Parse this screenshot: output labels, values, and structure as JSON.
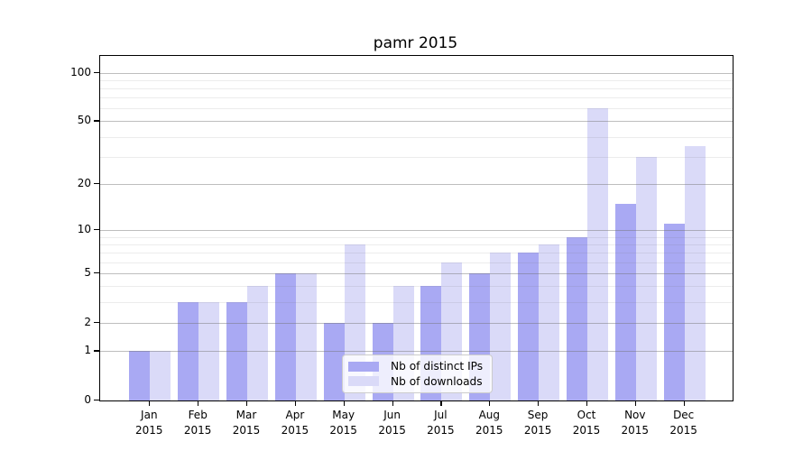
{
  "title": "pamr 2015",
  "chart_data": {
    "type": "bar",
    "categories": [
      "Jan 2015",
      "Feb 2015",
      "Mar 2015",
      "Apr 2015",
      "May 2015",
      "Jun 2015",
      "Jul 2015",
      "Aug 2015",
      "Sep 2015",
      "Oct 2015",
      "Nov 2015",
      "Dec 2015"
    ],
    "series": [
      {
        "name": "Nb of distinct IPs",
        "color": "#a9a9f3",
        "values": [
          1,
          3,
          3,
          5,
          2,
          2,
          4,
          5,
          7,
          9,
          15,
          11
        ]
      },
      {
        "name": "Nb of downloads",
        "color": "#dadaf8",
        "values": [
          1,
          3,
          4,
          5,
          8,
          4,
          6,
          7,
          8,
          60,
          30,
          35
        ]
      }
    ],
    "title": "pamr 2015",
    "xlabel": "",
    "ylabel": "",
    "yscale": "log1p",
    "y_ticks": [
      0,
      1,
      2,
      5,
      10,
      20,
      50,
      100
    ],
    "y_minor_gridlines": [
      3,
      4,
      6,
      7,
      8,
      9,
      30,
      40,
      60,
      70,
      80,
      90
    ],
    "ylim": [
      0,
      127
    ],
    "grid": "on",
    "legend_position": "lower center"
  }
}
